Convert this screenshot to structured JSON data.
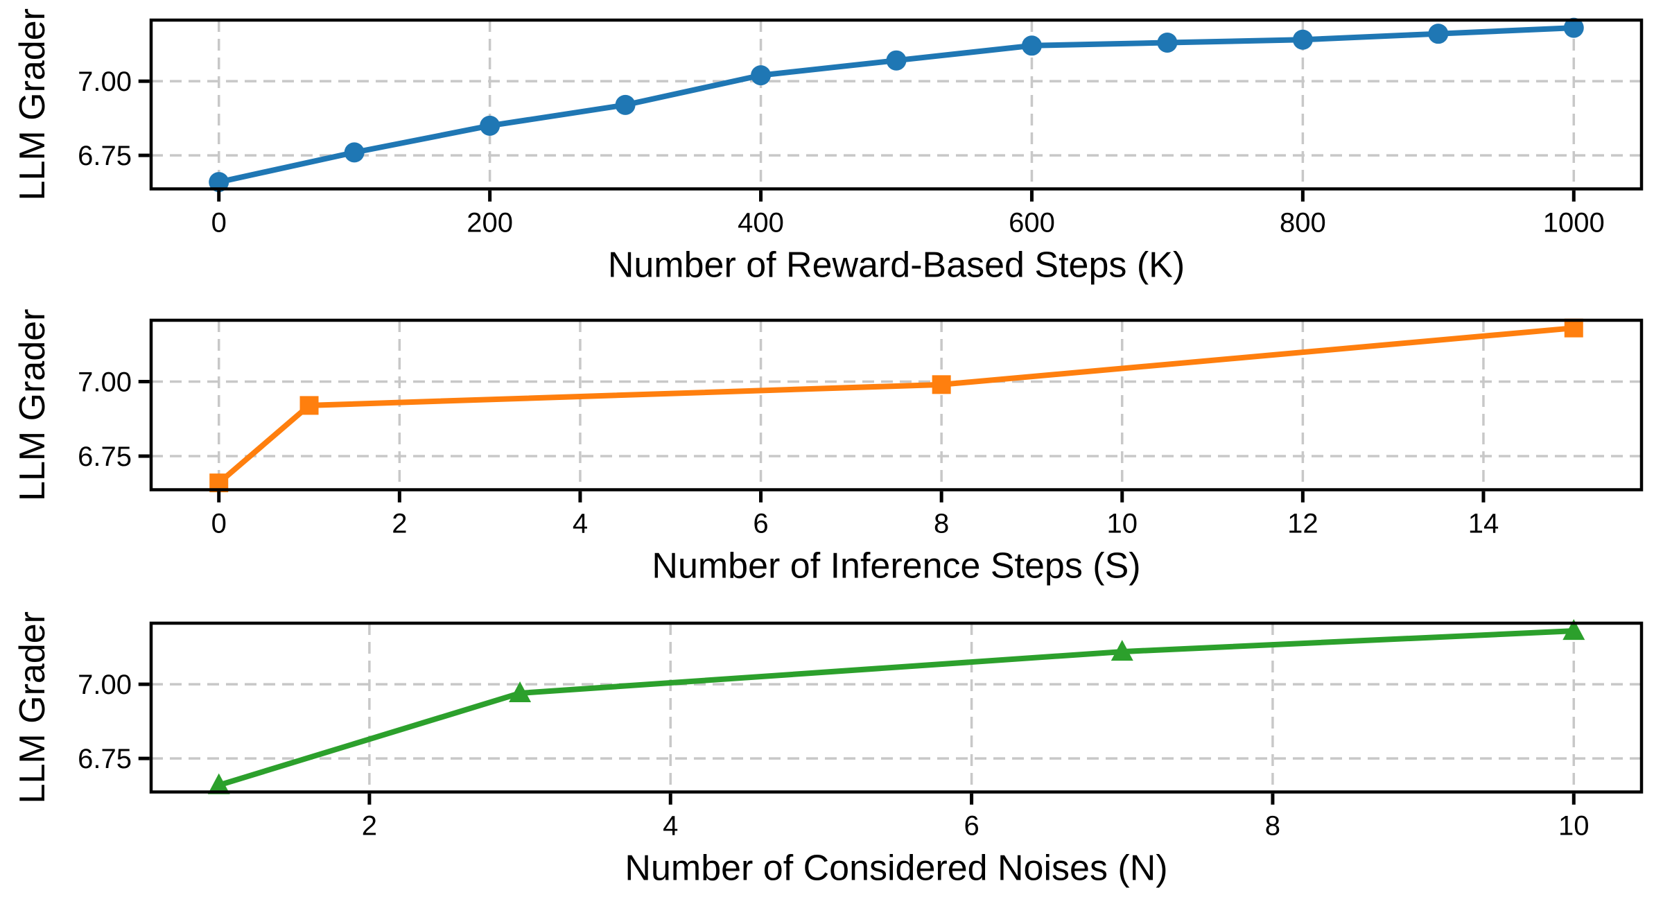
{
  "figure": {
    "background": "#ffffff",
    "grid_color": "#c8c8c8",
    "spine_color": "#000000",
    "text_color": "#000000"
  },
  "chart_data": [
    {
      "id": "reward-steps",
      "type": "line",
      "color": "#1f77b4",
      "marker": "circle",
      "x": [
        0,
        100,
        200,
        300,
        400,
        500,
        600,
        700,
        800,
        900,
        1000
      ],
      "y": [
        6.66,
        6.76,
        6.85,
        6.92,
        7.02,
        7.07,
        7.12,
        7.13,
        7.14,
        7.16,
        7.18
      ],
      "title": "",
      "xlabel": "Number of Reward-Based Steps (K)",
      "ylabel": "LLM Grader",
      "xlim": [
        -50,
        1050
      ],
      "ylim": [
        6.637,
        7.206
      ],
      "xticks": [
        0,
        200,
        400,
        600,
        800,
        1000
      ],
      "xtick_labels": [
        "0",
        "200",
        "400",
        "600",
        "800",
        "1000"
      ],
      "yticks": [
        6.75,
        7.0
      ],
      "ytick_labels": [
        "6.75",
        "7.00"
      ],
      "grid": true,
      "grid_style": "dashed",
      "legend": "none"
    },
    {
      "id": "inference-steps",
      "type": "line",
      "color": "#ff7f0e",
      "marker": "square",
      "x": [
        0,
        1,
        8,
        15
      ],
      "y": [
        6.66,
        6.92,
        6.99,
        7.18
      ],
      "title": "",
      "xlabel": "Number of Inference Steps (S)",
      "ylabel": "LLM Grader",
      "xlim": [
        -0.75,
        15.75
      ],
      "ylim": [
        6.637,
        7.206
      ],
      "xticks": [
        0,
        2,
        4,
        6,
        8,
        10,
        12,
        14
      ],
      "xtick_labels": [
        "0",
        "2",
        "4",
        "6",
        "8",
        "10",
        "12",
        "14"
      ],
      "yticks": [
        6.75,
        7.0
      ],
      "ytick_labels": [
        "6.75",
        "7.00"
      ],
      "grid": true,
      "grid_style": "dashed",
      "legend": "none"
    },
    {
      "id": "considered-noises",
      "type": "line",
      "color": "#2ca02c",
      "marker": "triangle-up",
      "x": [
        1,
        3,
        7,
        10
      ],
      "y": [
        6.66,
        6.97,
        7.11,
        7.18
      ],
      "title": "",
      "xlabel": "Number of Considered Noises (N)",
      "ylabel": "LLM Grader",
      "xlim": [
        0.55,
        10.45
      ],
      "ylim": [
        6.637,
        7.206
      ],
      "xticks": [
        2,
        4,
        6,
        8,
        10
      ],
      "xtick_labels": [
        "2",
        "4",
        "6",
        "8",
        "10"
      ],
      "yticks": [
        6.75,
        7.0
      ],
      "ytick_labels": [
        "6.75",
        "7.00"
      ],
      "grid": true,
      "grid_style": "dashed",
      "legend": "none"
    }
  ]
}
